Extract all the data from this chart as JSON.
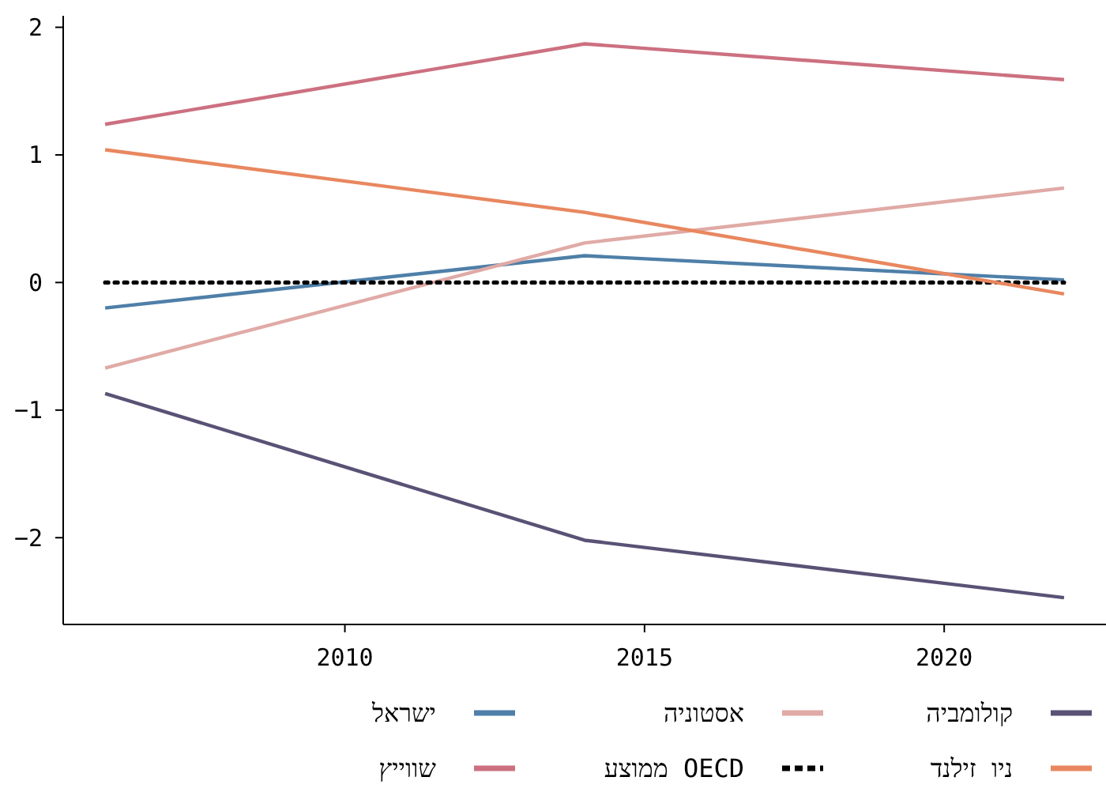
{
  "chart_data": {
    "type": "line",
    "x": [
      2006,
      2014,
      2022
    ],
    "xlim": [
      2005.3,
      2022.7
    ],
    "xticks": [
      2010,
      2015,
      2020
    ],
    "ylim": [
      -2.68,
      2.09
    ],
    "yticks": [
      {
        "value": -2,
        "label": "−2"
      },
      {
        "value": -1,
        "label": "−1"
      },
      0,
      1,
      2
    ],
    "grid": false,
    "legend": "bottom",
    "series": [
      {
        "name": "ישראל",
        "color": "#4e7fa8",
        "values": [
          -0.2,
          0.21,
          0.02
        ]
      },
      {
        "name": "שווייץ",
        "color": "#cc7080",
        "values": [
          1.24,
          1.87,
          1.59
        ]
      },
      {
        "name": "אסטוניה",
        "color": "#e0aaa6",
        "values": [
          -0.67,
          0.31,
          0.74
        ]
      },
      {
        "name": "ממוצע OECD",
        "color": "#000000",
        "line_style": "dotted",
        "values": [
          0,
          0,
          0
        ]
      },
      {
        "name": "קולומביה",
        "color": "#5a5275",
        "values": [
          -0.87,
          -2.02,
          -2.47
        ]
      },
      {
        "name": "ניו זילנד",
        "color": "#e8875f",
        "values": [
          1.04,
          0.55,
          -0.09
        ]
      }
    ]
  }
}
